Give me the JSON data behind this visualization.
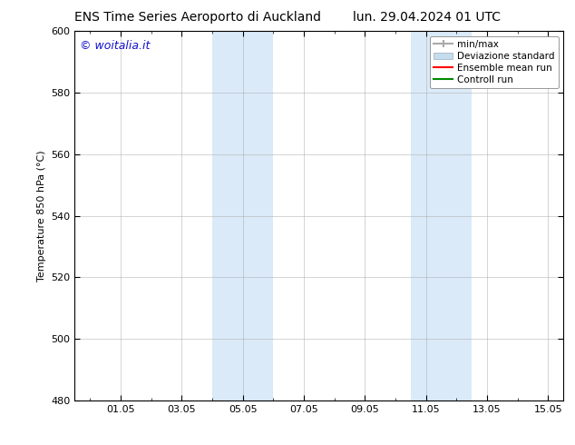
{
  "title_left": "ENS Time Series Aeroporto di Auckland",
  "title_right": "lun. 29.04.2024 01 UTC",
  "ylabel": "Temperature 850 hPa (°C)",
  "ylim": [
    480,
    600
  ],
  "yticks": [
    480,
    500,
    520,
    540,
    560,
    580,
    600
  ],
  "xtick_labels": [
    "01.05",
    "03.05",
    "05.05",
    "07.05",
    "09.05",
    "11.05",
    "13.05",
    "15.05"
  ],
  "xtick_positions": [
    1,
    3,
    5,
    7,
    9,
    11,
    13,
    15
  ],
  "xlim_min": -0.5,
  "xlim_max": 15.5,
  "watermark": "© woitalia.it",
  "watermark_color": "#1111cc",
  "bg_color": "#ffffff",
  "shaded_regions": [
    {
      "xmin": 4.0,
      "xmax": 6.0,
      "color": "#daeaf8"
    },
    {
      "xmin": 10.5,
      "xmax": 12.5,
      "color": "#daeaf8"
    }
  ],
  "legend_labels": [
    "min/max",
    "Deviazione standard",
    "Ensemble mean run",
    "Controll run"
  ],
  "legend_colors": [
    "#aaaaaa",
    "#c5dced",
    "#ff0000",
    "#008800"
  ],
  "font_family": "DejaVu Sans",
  "font_size": 8,
  "title_font_size": 10,
  "spine_color": "#000000",
  "grid_color": "#aaaaaa",
  "tick_color": "#000000"
}
